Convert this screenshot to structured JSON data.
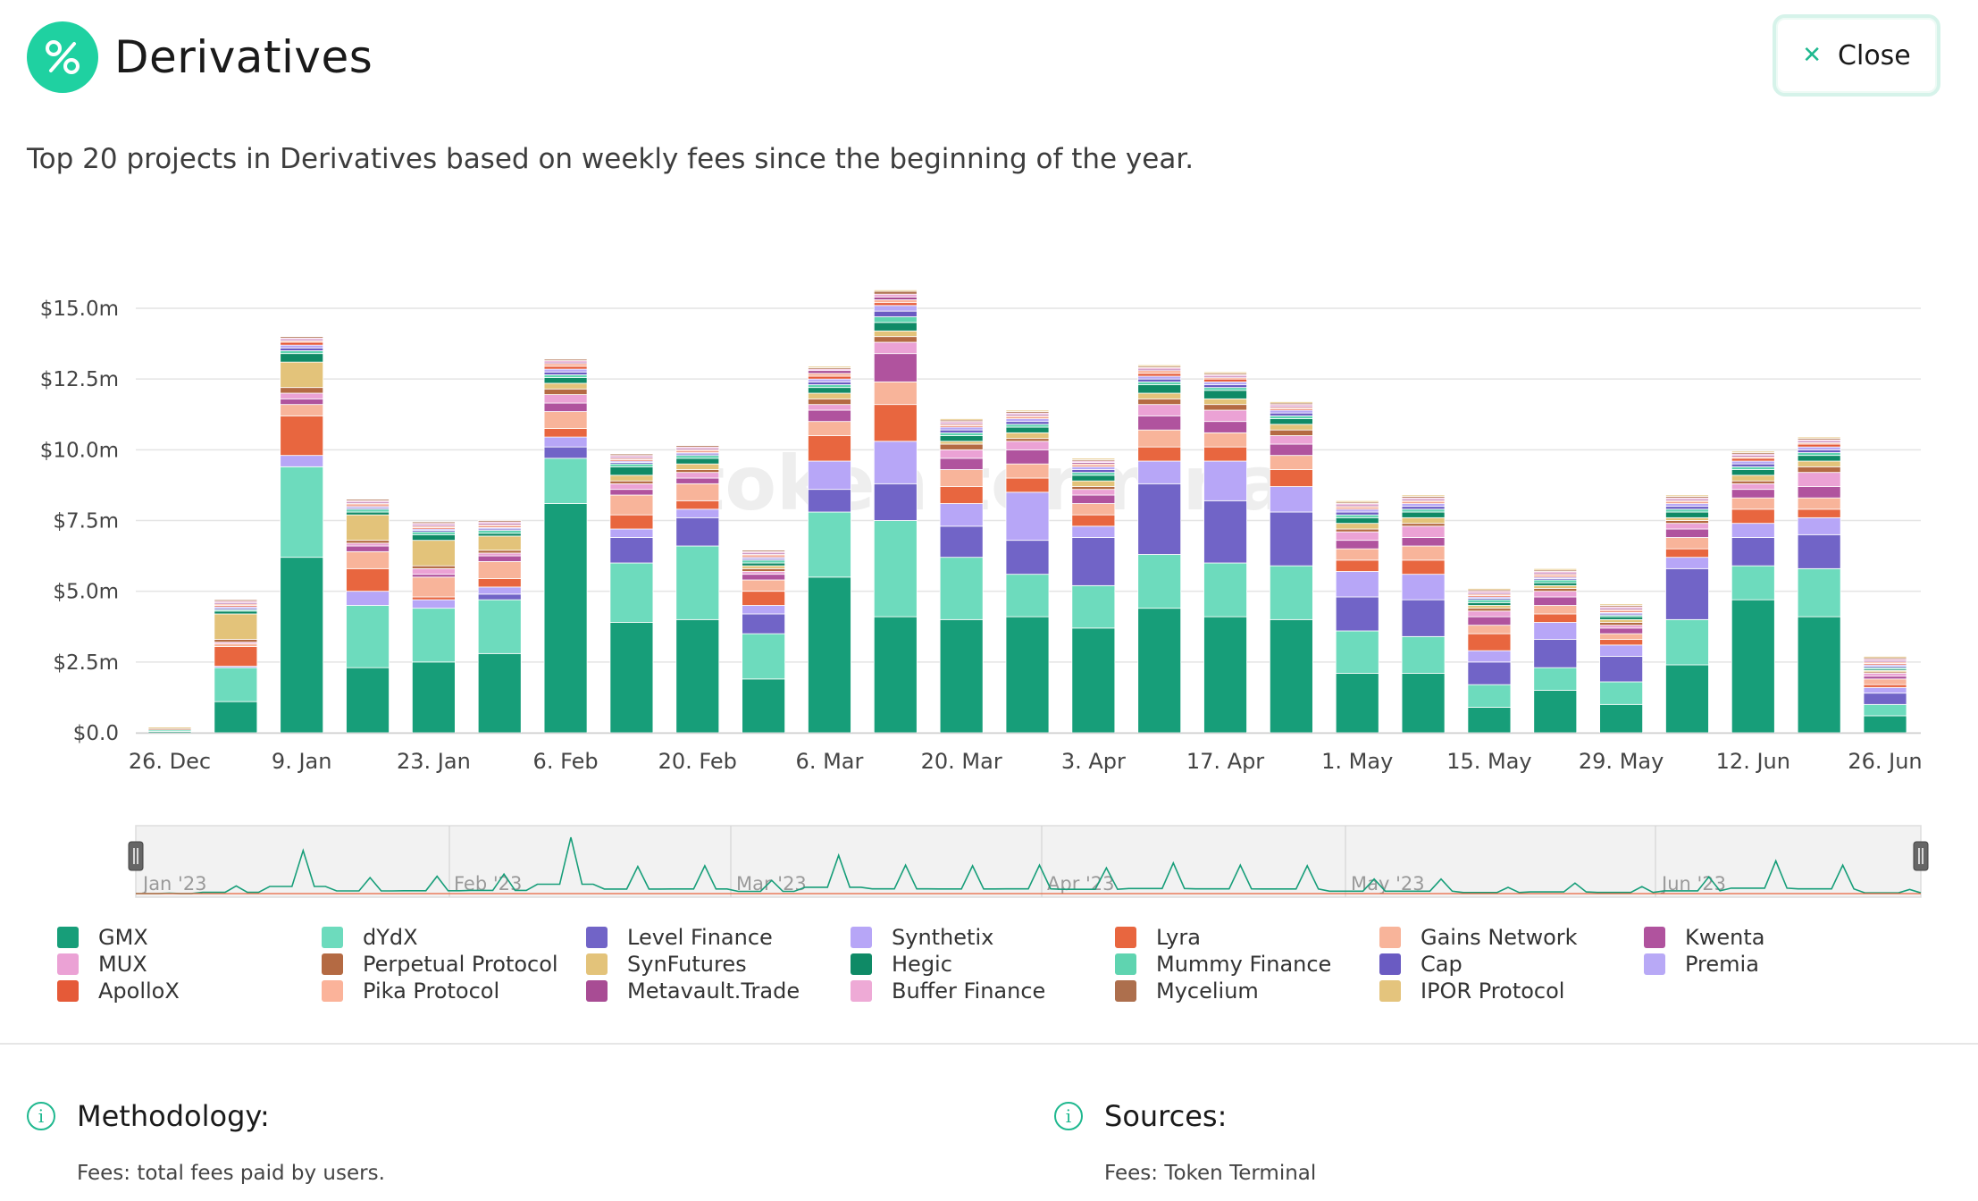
{
  "header": {
    "title": "Derivatives",
    "logo_icon": "percent-icon",
    "close_label": "Close",
    "close_icon": "close-icon"
  },
  "subtitle": "Top 20 projects in Derivatives based on weekly fees since the beginning of the year.",
  "watermark": "token terminal",
  "chart_data": {
    "type": "bar",
    "stacked": true,
    "title": "",
    "xlabel": "",
    "ylabel": "",
    "ylim": [
      0,
      15.5
    ],
    "y_unit": "$m",
    "yticks": [
      "$0.0",
      "$2.5m",
      "$5.0m",
      "$7.5m",
      "$10.0m",
      "$12.5m",
      "$15.0m"
    ],
    "xticks": [
      "26. Dec",
      "9. Jan",
      "23. Jan",
      "6. Feb",
      "20. Feb",
      "6. Mar",
      "20. Mar",
      "3. Apr",
      "17. Apr",
      "1. May",
      "15. May",
      "29. May",
      "12. Jun",
      "26. Jun"
    ],
    "categories": [
      "26. Dec",
      "2. Jan",
      "9. Jan",
      "16. Jan",
      "23. Jan",
      "30. Jan",
      "6. Feb",
      "13. Feb",
      "20. Feb",
      "27. Feb",
      "6. Mar",
      "13. Mar",
      "20. Mar",
      "27. Mar",
      "3. Apr",
      "10. Apr",
      "17. Apr",
      "24. Apr",
      "1. May",
      "8. May",
      "15. May",
      "22. May",
      "29. May",
      "5. Jun",
      "12. Jun",
      "19. Jun",
      "26. Jun"
    ],
    "series": [
      {
        "name": "GMX",
        "color": "#179e79",
        "values": [
          0.05,
          1.1,
          6.2,
          2.3,
          2.5,
          2.8,
          8.1,
          3.9,
          4.0,
          1.9,
          5.5,
          4.1,
          4.0,
          4.1,
          3.7,
          4.4,
          4.1,
          4.0,
          2.1,
          2.1,
          0.9,
          1.5,
          1.0,
          2.4,
          4.7,
          4.1,
          0.6
        ]
      },
      {
        "name": "dYdX",
        "color": "#6ddbbd",
        "values": [
          0.05,
          1.2,
          3.2,
          2.2,
          1.9,
          1.9,
          1.6,
          2.1,
          2.6,
          1.6,
          2.3,
          3.4,
          2.2,
          1.5,
          1.5,
          1.9,
          1.9,
          1.9,
          1.5,
          1.3,
          0.8,
          0.8,
          0.8,
          1.6,
          1.2,
          1.7,
          0.4
        ]
      },
      {
        "name": "Level Finance",
        "color": "#7164c7",
        "values": [
          0,
          0,
          0,
          0,
          0,
          0.2,
          0.4,
          0.9,
          1.0,
          0.7,
          0.8,
          1.3,
          1.1,
          1.2,
          1.7,
          2.5,
          2.2,
          1.9,
          1.2,
          1.3,
          0.8,
          1.0,
          0.9,
          1.8,
          1.0,
          1.2,
          0.4
        ]
      },
      {
        "name": "Synthetix",
        "color": "#b7a6f7",
        "values": [
          0,
          0.05,
          0.4,
          0.5,
          0.3,
          0.25,
          0.35,
          0.3,
          0.3,
          0.3,
          1.0,
          1.5,
          0.8,
          1.7,
          0.4,
          0.8,
          1.4,
          0.9,
          0.9,
          0.9,
          0.4,
          0.6,
          0.4,
          0.4,
          0.5,
          0.6,
          0.2
        ]
      },
      {
        "name": "Lyra",
        "color": "#e8663f",
        "values": [
          0,
          0.7,
          1.4,
          0.8,
          0.1,
          0.3,
          0.3,
          0.5,
          0.3,
          0.5,
          0.9,
          1.3,
          0.6,
          0.5,
          0.4,
          0.5,
          0.5,
          0.6,
          0.4,
          0.5,
          0.6,
          0.3,
          0.2,
          0.3,
          0.5,
          0.3,
          0.1
        ]
      },
      {
        "name": "Gains Network",
        "color": "#f8b49a",
        "values": [
          0,
          0.1,
          0.4,
          0.6,
          0.7,
          0.6,
          0.6,
          0.7,
          0.6,
          0.4,
          0.5,
          0.8,
          0.6,
          0.5,
          0.4,
          0.6,
          0.5,
          0.5,
          0.4,
          0.5,
          0.3,
          0.3,
          0.2,
          0.4,
          0.4,
          0.4,
          0.2
        ]
      },
      {
        "name": "Kwenta",
        "color": "#b0539e",
        "values": [
          0,
          0,
          0.2,
          0.2,
          0.1,
          0.2,
          0.3,
          0.2,
          0.2,
          0.2,
          0.4,
          1.0,
          0.4,
          0.5,
          0.3,
          0.5,
          0.4,
          0.4,
          0.3,
          0.3,
          0.3,
          0.3,
          0.2,
          0.3,
          0.3,
          0.4,
          0.1
        ]
      },
      {
        "name": "MUX",
        "color": "#eba2d5",
        "values": [
          0,
          0.05,
          0.2,
          0.1,
          0.2,
          0.1,
          0.3,
          0.2,
          0.2,
          0.1,
          0.2,
          0.4,
          0.3,
          0.3,
          0.2,
          0.4,
          0.4,
          0.3,
          0.3,
          0.4,
          0.2,
          0.2,
          0.1,
          0.2,
          0.2,
          0.5,
          0.1
        ]
      },
      {
        "name": "Perpetual Protocol",
        "color": "#b46a43",
        "values": [
          0.05,
          0.1,
          0.2,
          0.1,
          0.1,
          0.1,
          0.2,
          0.1,
          0.1,
          0.1,
          0.2,
          0.2,
          0.2,
          0.1,
          0.1,
          0.2,
          0.2,
          0.2,
          0.1,
          0.1,
          0.1,
          0.1,
          0.1,
          0.1,
          0.1,
          0.2,
          0.05
        ]
      },
      {
        "name": "SynFutures",
        "color": "#e3c37a",
        "values": [
          0.05,
          0.9,
          0.9,
          0.9,
          0.9,
          0.5,
          0.2,
          0.2,
          0.2,
          0.1,
          0.2,
          0.2,
          0.1,
          0.2,
          0.2,
          0.2,
          0.2,
          0.2,
          0.2,
          0.2,
          0.1,
          0.1,
          0.1,
          0.1,
          0.2,
          0.2,
          0.05
        ]
      },
      {
        "name": "Hegic",
        "color": "#0f8a66",
        "values": [
          0,
          0.1,
          0.3,
          0.1,
          0.2,
          0.1,
          0.2,
          0.3,
          0.2,
          0.1,
          0.2,
          0.3,
          0.2,
          0.2,
          0.2,
          0.3,
          0.3,
          0.2,
          0.2,
          0.2,
          0.1,
          0.1,
          0.1,
          0.2,
          0.2,
          0.2,
          0.05
        ]
      },
      {
        "name": "Mummy Finance",
        "color": "#5fd4b0",
        "values": [
          0,
          0.05,
          0.1,
          0.1,
          0.1,
          0.1,
          0.1,
          0.1,
          0.1,
          0.1,
          0.1,
          0.2,
          0.1,
          0.1,
          0.1,
          0.1,
          0.1,
          0.1,
          0.1,
          0.1,
          0.1,
          0.1,
          0.05,
          0.1,
          0.1,
          0.1,
          0.05
        ]
      },
      {
        "name": "Cap",
        "color": "#6a5bc2",
        "values": [
          0,
          0.05,
          0.1,
          0.05,
          0.05,
          0.05,
          0.1,
          0.05,
          0.05,
          0.05,
          0.1,
          0.2,
          0.1,
          0.1,
          0.1,
          0.1,
          0.1,
          0.1,
          0.1,
          0.1,
          0.05,
          0.05,
          0.05,
          0.1,
          0.1,
          0.1,
          0.05
        ]
      },
      {
        "name": "Premia",
        "color": "#b8a9f6",
        "values": [
          0,
          0.05,
          0.1,
          0.05,
          0.05,
          0.05,
          0.1,
          0.05,
          0.05,
          0.05,
          0.1,
          0.2,
          0.1,
          0.1,
          0.1,
          0.1,
          0.1,
          0.1,
          0.1,
          0.1,
          0.05,
          0.05,
          0.05,
          0.1,
          0.1,
          0.1,
          0.05
        ]
      },
      {
        "name": "ApolloX",
        "color": "#e55a38",
        "values": [
          0,
          0.05,
          0.1,
          0.05,
          0.05,
          0.05,
          0.1,
          0.05,
          0.05,
          0.05,
          0.1,
          0.1,
          0.05,
          0.05,
          0.05,
          0.1,
          0.1,
          0.05,
          0.05,
          0.05,
          0.05,
          0.05,
          0.05,
          0.05,
          0.1,
          0.1,
          0.05
        ]
      },
      {
        "name": "Pika Protocol",
        "color": "#fbb39a",
        "values": [
          0,
          0.05,
          0.05,
          0.05,
          0.05,
          0.05,
          0.1,
          0.05,
          0.05,
          0.05,
          0.1,
          0.1,
          0.05,
          0.05,
          0.05,
          0.1,
          0.05,
          0.05,
          0.05,
          0.05,
          0.05,
          0.05,
          0.05,
          0.05,
          0.05,
          0.05,
          0.05
        ]
      },
      {
        "name": "Metavault.Trade",
        "color": "#a84c94",
        "values": [
          0,
          0.05,
          0.05,
          0.05,
          0.05,
          0.05,
          0.05,
          0.05,
          0.05,
          0.05,
          0.1,
          0.1,
          0.05,
          0.05,
          0.05,
          0.05,
          0.05,
          0.05,
          0.05,
          0.05,
          0.05,
          0.05,
          0.05,
          0.05,
          0.05,
          0.05,
          0.05
        ]
      },
      {
        "name": "Buffer Finance",
        "color": "#eeaad6",
        "values": [
          0,
          0.05,
          0.05,
          0.05,
          0.05,
          0.05,
          0.05,
          0.05,
          0.05,
          0.05,
          0.05,
          0.1,
          0.05,
          0.05,
          0.05,
          0.05,
          0.05,
          0.05,
          0.05,
          0.05,
          0.05,
          0.05,
          0.05,
          0.05,
          0.05,
          0.05,
          0.05
        ]
      },
      {
        "name": "Mycelium",
        "color": "#ad6f4d",
        "values": [
          0,
          0.05,
          0.05,
          0.05,
          0.05,
          0.05,
          0.05,
          0.05,
          0.05,
          0.05,
          0.05,
          0.1,
          0.05,
          0.05,
          0.05,
          0.05,
          0.05,
          0.05,
          0.05,
          0.05,
          0.05,
          0.05,
          0.05,
          0.05,
          0.05,
          0.05,
          0.05
        ]
      },
      {
        "name": "IPOR Protocol",
        "color": "#e4c47d",
        "values": [
          0,
          0,
          0,
          0,
          0,
          0,
          0,
          0,
          0,
          0,
          0.05,
          0.05,
          0.05,
          0.05,
          0.05,
          0.05,
          0.05,
          0.05,
          0.05,
          0.05,
          0.05,
          0.05,
          0.05,
          0.05,
          0.05,
          0.05,
          0.05
        ]
      }
    ]
  },
  "navigator": {
    "labels": [
      "Jan '23",
      "Feb '23",
      "Mar '23",
      "Apr '23",
      "May '23",
      "Jun '23"
    ]
  },
  "legend_order": [
    "GMX",
    "dYdX",
    "Level Finance",
    "Synthetix",
    "Lyra",
    "Gains Network",
    "Kwenta",
    "MUX",
    "Perpetual Protocol",
    "SynFutures",
    "Hegic",
    "Mummy Finance",
    "Cap",
    "Premia",
    "ApolloX",
    "Pika Protocol",
    "Metavault.Trade",
    "Buffer Finance",
    "Mycelium",
    "IPOR Protocol"
  ],
  "legend_labels": [
    "GMX",
    "dYdX",
    "Level Finance",
    "Synthetix",
    "Lyra",
    "Gains Network",
    "Kwenta",
    "MUX",
    "Perpetual Protocol",
    "SynFutures",
    "Hegic",
    "Mummy Finance",
    "Cap",
    "Premia",
    "ApolloX",
    "Pika Protocol",
    "Metavault.Trade",
    "Buffer Finance",
    "Mycelium",
    "IPOR Protocol"
  ],
  "footer": {
    "methodology_title": "Methodology:",
    "methodology_text": "Fees: total fees paid by users.",
    "sources_title": "Sources:",
    "sources_text": "Fees: Token Terminal",
    "info_icon": "info-icon"
  }
}
